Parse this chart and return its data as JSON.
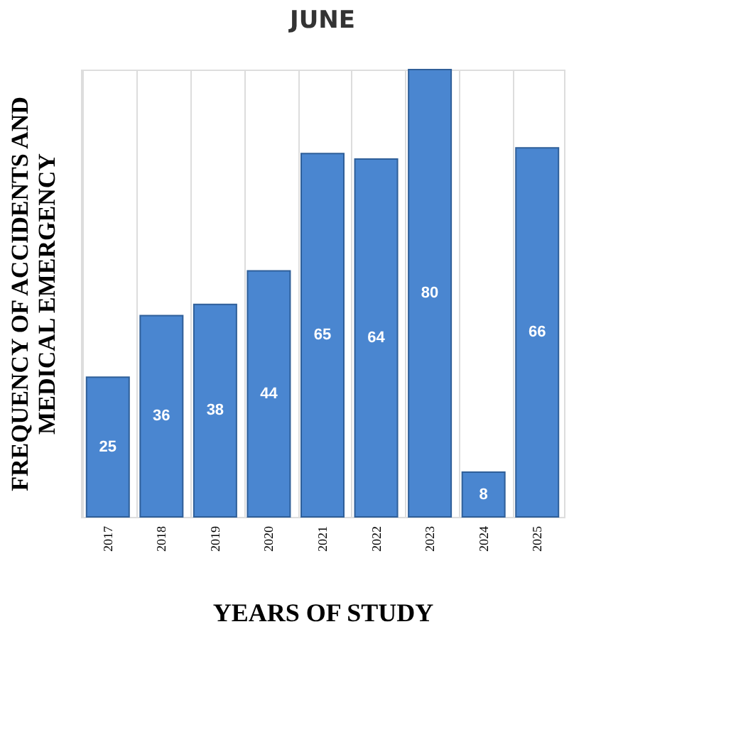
{
  "chart_data": {
    "type": "bar",
    "title": "JUNE",
    "xlabel": "YEARS OF STUDY",
    "ylabel": "FREQUENCY OF ACCIDENTS AND\nMEDICAL EMERGENCY",
    "categories": [
      "2017",
      "2018",
      "2019",
      "2020",
      "2021",
      "2022",
      "2023",
      "2024",
      "2025"
    ],
    "values": [
      25,
      36,
      38,
      44,
      65,
      64,
      80,
      8,
      66
    ],
    "color": "#4a86d0",
    "data_labels": true,
    "grid": "x",
    "tick_labels": "x"
  }
}
